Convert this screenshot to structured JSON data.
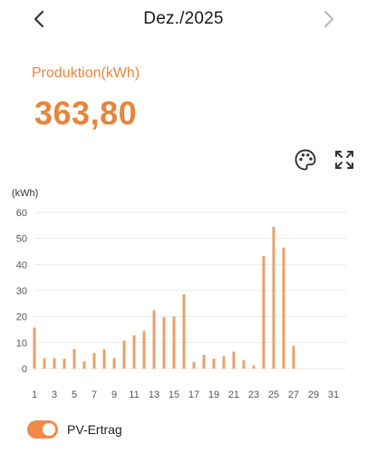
{
  "header": {
    "title": "Dez./2025",
    "prev_icon": "chevron-left-icon",
    "next_icon": "chevron-right-icon"
  },
  "summary": {
    "label": "Produktion(kWh)",
    "value": "363,80"
  },
  "toolbar": {
    "palette_icon": "palette-icon",
    "expand_icon": "expand-icon"
  },
  "colors": {
    "accent": "#e8853a",
    "bar": "#e9a06a",
    "grid": "#e9e9e9",
    "axis_text": "#555555",
    "toggle_on": "#ef8a4a"
  },
  "chart_data": {
    "type": "bar",
    "ylabel": "(kWh)",
    "ylim": [
      0,
      60
    ],
    "yticks": [
      0,
      10,
      20,
      30,
      40,
      50,
      60
    ],
    "xticks": [
      1,
      3,
      5,
      7,
      9,
      11,
      13,
      15,
      17,
      19,
      21,
      23,
      25,
      27,
      29,
      31
    ],
    "grid": true,
    "legend_position": "bottom-left",
    "series": [
      {
        "name": "PV-Ertrag",
        "days": [
          1,
          2,
          3,
          4,
          5,
          6,
          7,
          8,
          9,
          10,
          11,
          12,
          13,
          14,
          15,
          16,
          17,
          18,
          19,
          20,
          21,
          22,
          23,
          24,
          25,
          26,
          27,
          28,
          29,
          30,
          31
        ],
        "values": [
          15.8,
          4,
          4,
          3.8,
          7.5,
          2.8,
          6,
          7.5,
          4,
          10.8,
          12.8,
          14.5,
          22.5,
          19.8,
          20,
          28.5,
          2.5,
          5.3,
          3.8,
          4.8,
          6.5,
          3.3,
          1.2,
          43.2,
          54.5,
          46.5,
          8.8,
          0,
          0,
          0,
          0
        ]
      }
    ]
  },
  "legend": {
    "label": "PV-Ertrag",
    "toggle_on": true
  }
}
